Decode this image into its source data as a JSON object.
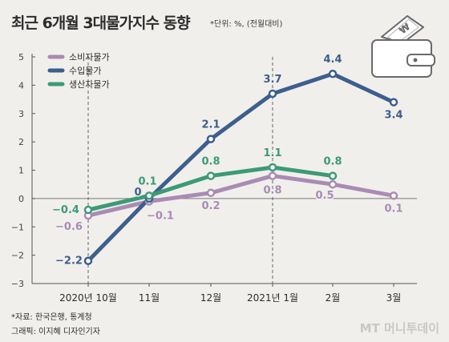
{
  "header": {
    "title": "최근 6개월 3대물가지수 동향",
    "unit_note": "*단위: %, (전월대비)"
  },
  "footer": {
    "source": "*자료: 한국은행, 통계청",
    "credit": "그래픽: 이지혜 디자인기자",
    "watermark": "MT 머니투데이"
  },
  "colors": {
    "consumer": "#a98bb3",
    "import": "#3c5f8d",
    "producer": "#3c9a77",
    "background": "#f1efec",
    "axis": "#555555"
  },
  "chart_data": {
    "type": "line",
    "categories": [
      "2020년 10월",
      "11월",
      "12월",
      "2021년 1월",
      "2월",
      "3월"
    ],
    "yticks": [
      5,
      4,
      3,
      2,
      1,
      0,
      -1,
      -2,
      -3
    ],
    "ylim": [
      -3,
      5
    ],
    "grid": false,
    "legend_position": "top-left",
    "series": [
      {
        "name": "소비자물가",
        "color": "#a98bb3",
        "values": [
          -0.6,
          -0.1,
          0.2,
          0.8,
          0.5,
          0.1
        ],
        "labels": [
          "-0.6",
          "-0.1",
          "0.2",
          "0.8",
          "0.5",
          "0.1"
        ]
      },
      {
        "name": "수입물가",
        "color": "#3c5f8d",
        "values": [
          -2.2,
          0.0,
          2.1,
          3.7,
          4.4,
          3.4
        ],
        "labels": [
          "-2.2",
          "0",
          "2.1",
          "3.7",
          "4.4",
          "3.4"
        ]
      },
      {
        "name": "생산자물가",
        "color": "#3c9a77",
        "values": [
          -0.4,
          0.1,
          0.8,
          1.1,
          0.8,
          null
        ],
        "labels": [
          "-0.4",
          "0.1",
          "0.8",
          "1.1",
          "0.8",
          ""
        ]
      }
    ]
  }
}
